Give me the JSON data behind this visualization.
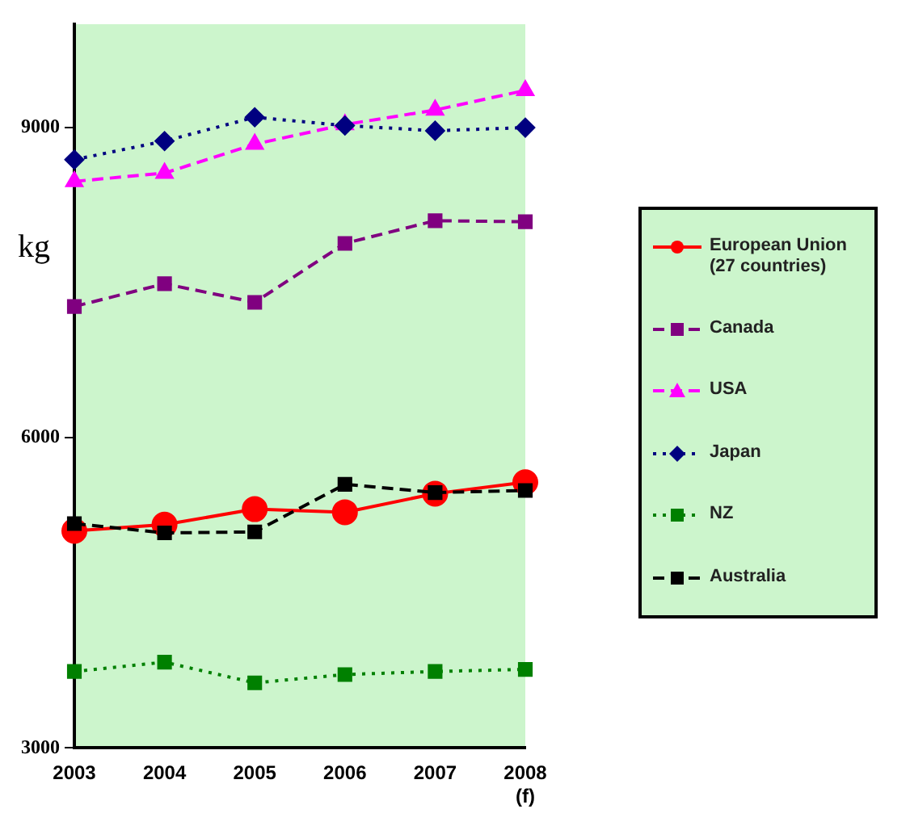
{
  "chart_data": {
    "type": "line",
    "ylabel": "kg",
    "categories": [
      "2003",
      "2004",
      "2005",
      "2006",
      "2007",
      "2008\n(f)"
    ],
    "series": [
      {
        "name": "European Union\n(27 countries)",
        "color": "#ff0000",
        "marker": "circle",
        "line_style": "solid",
        "values": [
          5100,
          5160,
          5310,
          5280,
          5460,
          5570
        ]
      },
      {
        "name": "Canada",
        "color": "#800080",
        "marker": "square",
        "line_style": "dashed",
        "values": [
          7270,
          7490,
          7310,
          7880,
          8100,
          8090
        ]
      },
      {
        "name": "USA",
        "color": "#ff00ff",
        "marker": "triangle",
        "line_style": "dashed",
        "values": [
          8480,
          8560,
          8840,
          9030,
          9170,
          9360
        ]
      },
      {
        "name": "Japan",
        "color": "#000080",
        "marker": "diamond",
        "line_style": "dotted",
        "values": [
          8690,
          8870,
          9100,
          9020,
          8970,
          9000
        ]
      },
      {
        "name": "NZ",
        "color": "#008000",
        "marker": "square",
        "line_style": "dotted",
        "values": [
          3740,
          3830,
          3630,
          3710,
          3740,
          3760
        ]
      },
      {
        "name": "Australia",
        "color": "#000000",
        "marker": "square",
        "line_style": "dashed",
        "values": [
          5170,
          5080,
          5090,
          5550,
          5470,
          5490
        ]
      }
    ],
    "ylim": [
      3000,
      10000
    ],
    "yticks": [
      3000,
      6000,
      9000
    ],
    "grid": false,
    "legend": "right"
  }
}
